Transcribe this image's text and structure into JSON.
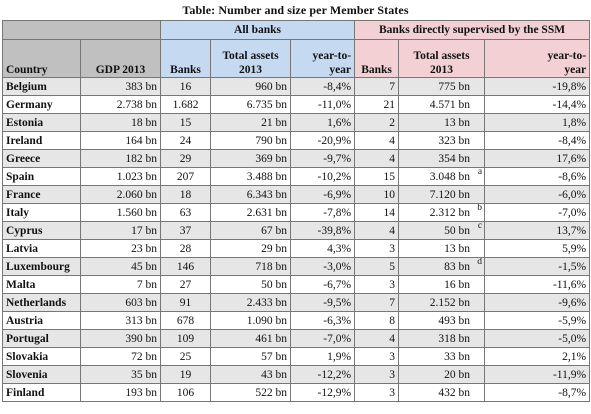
{
  "title": "Table: Number and size per Member States",
  "group_headers": {
    "all_banks": "All banks",
    "ssm": "Banks directly supervised by the SSM"
  },
  "columns": {
    "country": "Country",
    "gdp": "GDP 2013",
    "banks": "Banks",
    "total_assets_line1": "Total assets",
    "total_assets_line2": "2013",
    "yoy_line1": "year-to-",
    "yoy_line2": "year",
    "ssm_banks": "Banks",
    "ssm_total_assets_line1": "Total assets",
    "ssm_total_assets_line2": "2013",
    "ssm_yoy_line1": "year-to-",
    "ssm_yoy_line2": "year"
  },
  "rows": [
    {
      "country": "Belgium",
      "gdp": "383 bn",
      "banks": "16",
      "assets": "960 bn",
      "yoy": "-8,4%",
      "ssm_banks": "7",
      "ssm_assets": "775 bn",
      "note": "",
      "ssm_yoy": "-19,8%"
    },
    {
      "country": "Germany",
      "gdp": "2.738 bn",
      "banks": "1.682",
      "assets": "6.735 bn",
      "yoy": "-11,0%",
      "ssm_banks": "21",
      "ssm_assets": "4.571 bn",
      "note": "",
      "ssm_yoy": "-14,4%"
    },
    {
      "country": "Estonia",
      "gdp": "18 bn",
      "banks": "15",
      "assets": "21 bn",
      "yoy": "1,6%",
      "ssm_banks": "2",
      "ssm_assets": "13 bn",
      "note": "",
      "ssm_yoy": "1,8%"
    },
    {
      "country": "Ireland",
      "gdp": "164 bn",
      "banks": "24",
      "assets": "790 bn",
      "yoy": "-20,9%",
      "ssm_banks": "4",
      "ssm_assets": "323 bn",
      "note": "",
      "ssm_yoy": "-8,4%"
    },
    {
      "country": "Greece",
      "gdp": "182 bn",
      "banks": "29",
      "assets": "369 bn",
      "yoy": "-9,7%",
      "ssm_banks": "4",
      "ssm_assets": "354 bn",
      "note": "",
      "ssm_yoy": "17,6%"
    },
    {
      "country": "Spain",
      "gdp": "1.023 bn",
      "banks": "207",
      "assets": "3.488 bn",
      "yoy": "-10,2%",
      "ssm_banks": "15",
      "ssm_assets": "3.048 bn",
      "note": "a",
      "ssm_yoy": "-8,6%"
    },
    {
      "country": "France",
      "gdp": "2.060 bn",
      "banks": "18",
      "assets": "6.343 bn",
      "yoy": "-6,9%",
      "ssm_banks": "10",
      "ssm_assets": "7.120 bn",
      "note": "",
      "ssm_yoy": "-6,0%"
    },
    {
      "country": "Italy",
      "gdp": "1.560 bn",
      "banks": "63",
      "assets": "2.631 bn",
      "yoy": "-7,8%",
      "ssm_banks": "14",
      "ssm_assets": "2.312 bn",
      "note": "b",
      "ssm_yoy": "-7,0%"
    },
    {
      "country": "Cyprus",
      "gdp": "17 bn",
      "banks": "37",
      "assets": "67 bn",
      "yoy": "-39,8%",
      "ssm_banks": "4",
      "ssm_assets": "50 bn",
      "note": "c",
      "ssm_yoy": "13,7%"
    },
    {
      "country": "Latvia",
      "gdp": "23 bn",
      "banks": "28",
      "assets": "29 bn",
      "yoy": "4,3%",
      "ssm_banks": "3",
      "ssm_assets": "13 bn",
      "note": "",
      "ssm_yoy": "5,9%"
    },
    {
      "country": "Luxembourg",
      "gdp": "45 bn",
      "banks": "146",
      "assets": "718 bn",
      "yoy": "-3,0%",
      "ssm_banks": "5",
      "ssm_assets": "83 bn",
      "note": "d",
      "ssm_yoy": "-1,5%"
    },
    {
      "country": "Malta",
      "gdp": "7 bn",
      "banks": "27",
      "assets": "50 bn",
      "yoy": "-6,7%",
      "ssm_banks": "3",
      "ssm_assets": "16 bn",
      "note": "",
      "ssm_yoy": "-11,6%"
    },
    {
      "country": "Netherlands",
      "gdp": "603 bn",
      "banks": "91",
      "assets": "2.433 bn",
      "yoy": "-9,5%",
      "ssm_banks": "7",
      "ssm_assets": "2.152 bn",
      "note": "",
      "ssm_yoy": "-9,6%"
    },
    {
      "country": "Austria",
      "gdp": "313 bn",
      "banks": "678",
      "assets": "1.090 bn",
      "yoy": "-6,3%",
      "ssm_banks": "8",
      "ssm_assets": "493 bn",
      "note": "",
      "ssm_yoy": "-5,9%"
    },
    {
      "country": "Portugal",
      "gdp": "390 bn",
      "banks": "109",
      "assets": "461 bn",
      "yoy": "-7,0%",
      "ssm_banks": "4",
      "ssm_assets": "318 bn",
      "note": "",
      "ssm_yoy": "-5,0%"
    },
    {
      "country": "Slovakia",
      "gdp": "72 bn",
      "banks": "25",
      "assets": "57 bn",
      "yoy": "1,9%",
      "ssm_banks": "3",
      "ssm_assets": "33 bn",
      "note": "",
      "ssm_yoy": "2,1%"
    },
    {
      "country": "Slovenia",
      "gdp": "35 bn",
      "banks": "19",
      "assets": "43 bn",
      "yoy": "-12,2%",
      "ssm_banks": "3",
      "ssm_assets": "20 bn",
      "note": "",
      "ssm_yoy": "-11,9%"
    },
    {
      "country": "Finland",
      "gdp": "193 bn",
      "banks": "106",
      "assets": "522 bn",
      "yoy": "-12,9%",
      "ssm_banks": "3",
      "ssm_assets": "432 bn",
      "note": "",
      "ssm_yoy": "-8,7%"
    }
  ],
  "colors": {
    "header_gray": "#c0c0c0",
    "header_blue": "#c5d9f1",
    "header_pink": "#f2d0d3",
    "row_shade": "#e6e6e6"
  }
}
